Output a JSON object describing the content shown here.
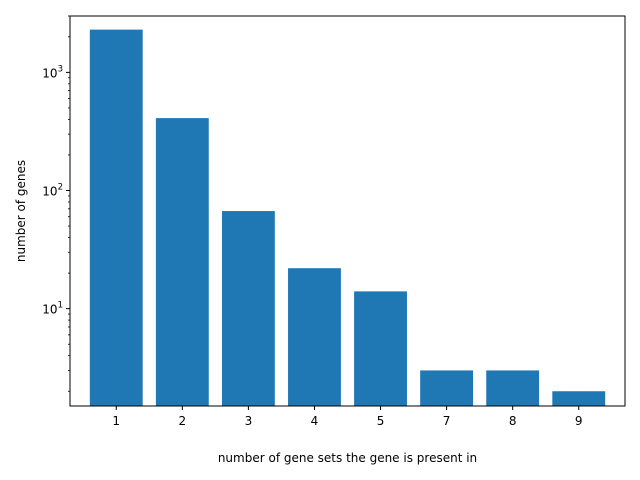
{
  "chart_data": {
    "type": "bar",
    "title": "",
    "xlabel": "number of gene sets the gene is present in",
    "ylabel": "number of genes",
    "yscale": "log",
    "ylim": [
      1.5,
      3000
    ],
    "grid": false,
    "legend": "none",
    "bar_color": "#1f77b4",
    "categories": [
      "1",
      "2",
      "3",
      "4",
      "5",
      "7",
      "8",
      "9"
    ],
    "values": [
      2300,
      410,
      67,
      22,
      14,
      3,
      3,
      2
    ],
    "y_major_ticks": [
      {
        "value": 10,
        "base": "10",
        "exp": "1"
      },
      {
        "value": 100,
        "base": "10",
        "exp": "2"
      },
      {
        "value": 1000,
        "base": "10",
        "exp": "3"
      }
    ],
    "y_minor_ticks": [
      2,
      3,
      4,
      5,
      6,
      7,
      8,
      9,
      20,
      30,
      40,
      50,
      60,
      70,
      80,
      90,
      200,
      300,
      400,
      500,
      600,
      700,
      800,
      900,
      2000,
      3000
    ]
  }
}
